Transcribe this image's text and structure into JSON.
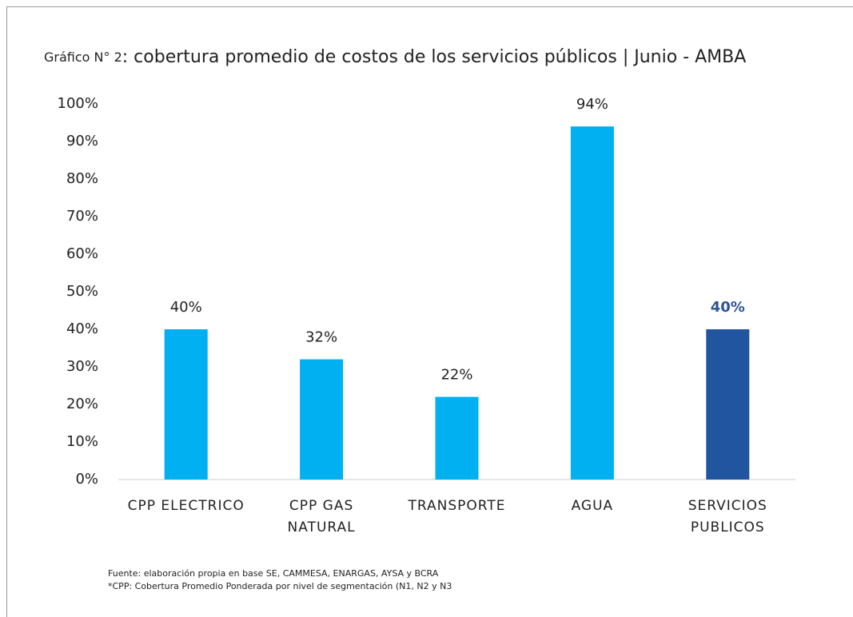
{
  "chart_data": {
    "type": "bar",
    "title": [
      "Gráfico N° 2",
      ": cobertura promedio de costos de los servicios públicos | Junio - AMBA"
    ],
    "categories": [
      "CPP ELECTRICO",
      "CPP GAS NATURAL",
      "TRANSPORTE",
      "AGUA",
      "SERVICIOS PUBLICOS"
    ],
    "values": [
      40,
      32,
      22,
      94,
      40
    ],
    "value_labels": [
      "40%",
      "32%",
      "22%",
      "94%",
      "40%"
    ],
    "colors": [
      "#00b0f0",
      "#00b0f0",
      "#00b0f0",
      "#00b0f0",
      "#2255a0"
    ],
    "value_label_colors": [
      "#222222",
      "#222222",
      "#222222",
      "#222222",
      "#2f5597"
    ],
    "ylim": [
      0,
      100
    ],
    "yticks": [
      {
        "value": 0,
        "label": "0%"
      },
      {
        "value": 10,
        "label": "10%"
      },
      {
        "value": 20,
        "label": "20%"
      },
      {
        "value": 30,
        "label": "30%"
      },
      {
        "value": 40,
        "label": "40%"
      },
      {
        "value": 50,
        "label": "50%"
      },
      {
        "value": 60,
        "label": "60%"
      },
      {
        "value": 70,
        "label": "70%"
      },
      {
        "value": 80,
        "label": "80%"
      },
      {
        "value": 90,
        "label": "90%"
      },
      {
        "value": 100,
        "label": "100%"
      }
    ],
    "grid": false,
    "notes": [
      "Fuente: elaboración propia en base SE, CAMMESA, ENARGAS, AYSA y BCRA",
      "*CPP: Cobertura Promedio Ponderada por nivel de segmentación (N1, N2 y N3"
    ]
  }
}
